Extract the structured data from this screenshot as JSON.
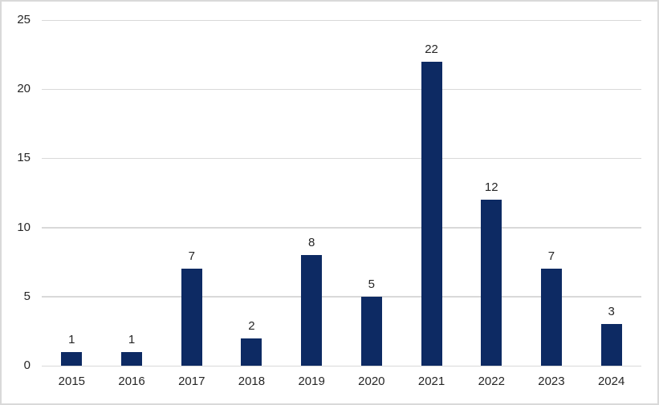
{
  "window": {
    "background_color": "#ffffff",
    "border_color": "#d9d9d9"
  },
  "chart_data": {
    "type": "bar",
    "title": "",
    "xlabel": "",
    "ylabel": "",
    "categories": [
      "2015",
      "2016",
      "2017",
      "2018",
      "2019",
      "2020",
      "2021",
      "2022",
      "2023",
      "2024"
    ],
    "values": [
      1,
      1,
      7,
      2,
      8,
      5,
      22,
      12,
      7,
      3
    ],
    "data_labels": [
      "1",
      "1",
      "7",
      "2",
      "8",
      "5",
      "22",
      "12",
      "7",
      "3"
    ],
    "ylim": [
      0,
      25
    ],
    "yticks": [
      0,
      5,
      10,
      15,
      20,
      25
    ],
    "ytick_labels": [
      "0",
      "5",
      "10",
      "15",
      "20",
      "25"
    ],
    "grid": true,
    "legend": "none",
    "bar_color": "#0d2a63",
    "gridline_color": "#d9d9d9",
    "text_color": "#262626"
  }
}
